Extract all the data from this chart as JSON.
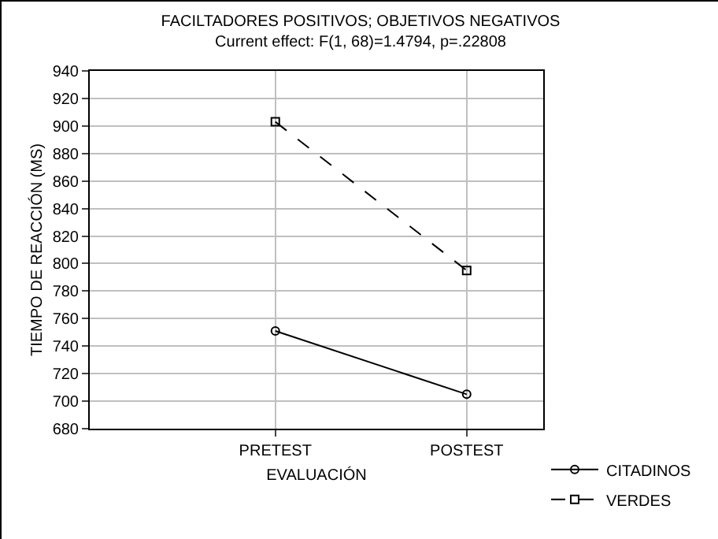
{
  "chart_data": {
    "type": "line",
    "title": "FACILTADORES POSITIVOS; OBJETIVOS NEGATIVOS",
    "subtitle": "Current effect: F(1, 68)=1.4794, p=.22808",
    "xlabel": "EVALUACIÓN",
    "ylabel": "TIEMPO DE REACCIÓN (MS)",
    "categories": [
      "PRETEST",
      "POSTEST"
    ],
    "series": [
      {
        "name": "CITADINOS",
        "color": "#000000",
        "values": [
          751,
          705
        ],
        "marker": "circle",
        "line_style": "solid"
      },
      {
        "name": "VERDES",
        "color": "#000000",
        "values": [
          903,
          795
        ],
        "marker": "square",
        "line_style": "dashed"
      }
    ],
    "ylim": [
      680,
      940
    ],
    "yticks": [
      680,
      700,
      720,
      740,
      760,
      780,
      800,
      820,
      840,
      860,
      880,
      900,
      920,
      940
    ],
    "grid": true,
    "legend": "bottom right"
  }
}
